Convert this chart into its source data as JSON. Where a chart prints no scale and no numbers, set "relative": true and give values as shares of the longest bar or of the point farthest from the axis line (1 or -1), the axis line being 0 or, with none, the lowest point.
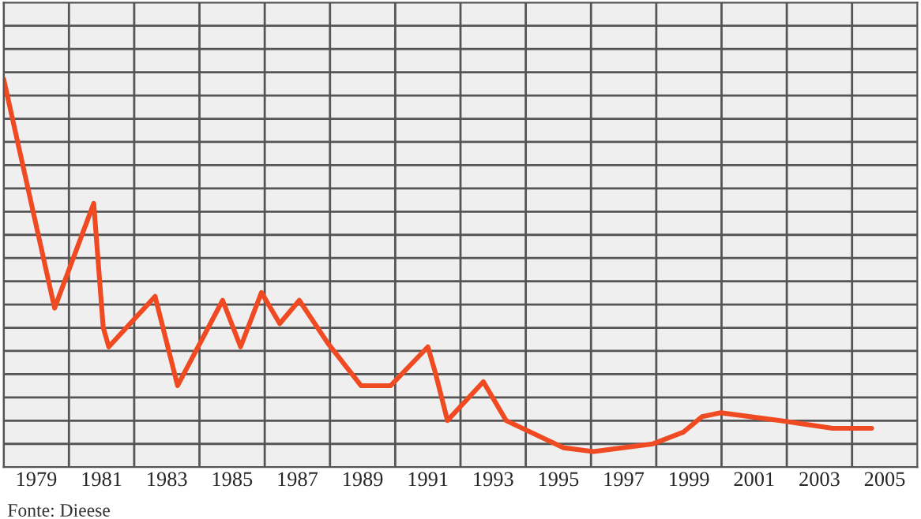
{
  "chart_data": {
    "type": "line",
    "relative": true,
    "x": [
      1978,
      1979.56,
      1980.76,
      1981.05,
      1981.22,
      1982.64,
      1983.33,
      1984.71,
      1985.26,
      1985.9,
      1986.46,
      1987.06,
      1987.93,
      1988.95,
      1989.86,
      1991.0,
      1991.24,
      1991.6,
      1992.7,
      1993.4,
      1995.15,
      1996.07,
      1997.9,
      1998.83,
      1999.4,
      1999.98,
      2001.8,
      2003.4,
      2004.6
    ],
    "series": [
      {
        "color": "#f04a23",
        "values": [
          1.0,
          0.41,
          0.68,
          0.36,
          0.31,
          0.44,
          0.21,
          0.43,
          0.31,
          0.45,
          0.37,
          0.43,
          0.32,
          0.21,
          0.21,
          0.31,
          0.24,
          0.12,
          0.22,
          0.12,
          0.05,
          0.04,
          0.06,
          0.09,
          0.13,
          0.14,
          0.12,
          0.1,
          0.1
        ]
      }
    ],
    "xlim": [
      1978,
      2006
    ],
    "xticks": [
      1979,
      1981,
      1983,
      1985,
      1987,
      1989,
      1991,
      1993,
      1995,
      1997,
      1999,
      2001,
      2003,
      2005
    ],
    "grid": true,
    "marker": "none",
    "line_style": "solid",
    "annotations": [
      "Fonte: Dieese"
    ]
  }
}
